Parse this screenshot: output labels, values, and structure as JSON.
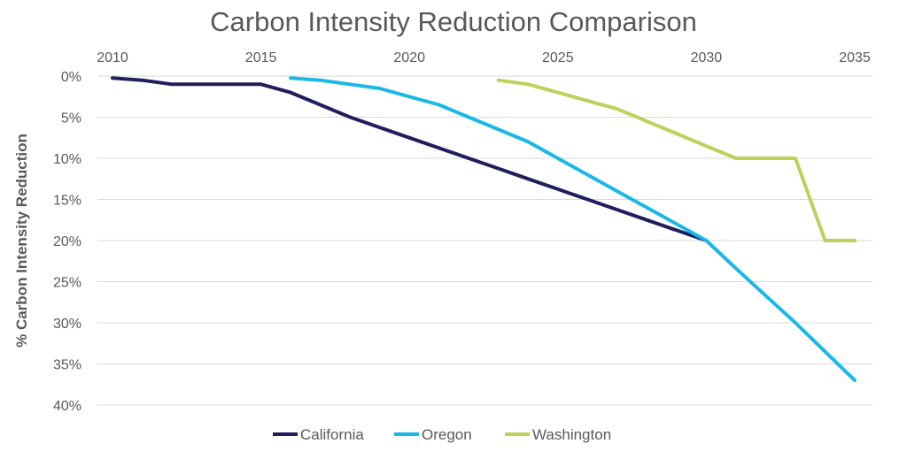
{
  "chart_data": {
    "type": "line",
    "title": "Carbon Intensity Reduction Comparison",
    "xlabel": "",
    "ylabel": "% Carbon Intensity Reduction",
    "xlim": [
      2010,
      2035
    ],
    "ylim": [
      0,
      40
    ],
    "y_inverted": true,
    "x_axis_position": "top",
    "x_ticks": [
      2010,
      2015,
      2020,
      2025,
      2030,
      2035
    ],
    "x_tick_labels": [
      "2010",
      "2015",
      "2020",
      "2025",
      "2030",
      "2035"
    ],
    "y_ticks": [
      0,
      5,
      10,
      15,
      20,
      25,
      30,
      35,
      40
    ],
    "y_tick_labels": [
      "0%",
      "5%",
      "10%",
      "15%",
      "20%",
      "25%",
      "30%",
      "35%",
      "40%"
    ],
    "grid": true,
    "legend_position": "bottom",
    "series": [
      {
        "name": "California",
        "color": "#201f5e",
        "x": [
          2010,
          2011,
          2012,
          2013,
          2014,
          2015,
          2016,
          2017,
          2018,
          2019,
          2020,
          2021,
          2022,
          2023,
          2024,
          2025,
          2026,
          2027,
          2028,
          2029,
          2030
        ],
        "values": [
          0.25,
          0.5,
          1,
          1,
          1,
          1,
          2,
          3.5,
          5,
          6.25,
          7.5,
          8.75,
          10,
          11.25,
          12.5,
          13.75,
          15,
          16.25,
          17.5,
          18.75,
          20
        ]
      },
      {
        "name": "Oregon",
        "color": "#1ab8e8",
        "x": [
          2016,
          2017,
          2018,
          2019,
          2020,
          2021,
          2022,
          2023,
          2024,
          2025,
          2026,
          2027,
          2028,
          2029,
          2030,
          2031,
          2032,
          2033,
          2034,
          2035
        ],
        "values": [
          0.25,
          0.5,
          1,
          1.5,
          2.5,
          3.5,
          5,
          6.5,
          8,
          10,
          12,
          14,
          16,
          18,
          20,
          23.4,
          26.7,
          30,
          33.5,
          37
        ]
      },
      {
        "name": "Washington",
        "color": "#b8d45a",
        "x": [
          2023,
          2024,
          2025,
          2026,
          2027,
          2028,
          2029,
          2030,
          2031,
          2032,
          2033,
          2034,
          2035
        ],
        "values": [
          0.5,
          1,
          2,
          3,
          4,
          5.5,
          7,
          8.5,
          10,
          10,
          10,
          20,
          20
        ]
      }
    ]
  }
}
